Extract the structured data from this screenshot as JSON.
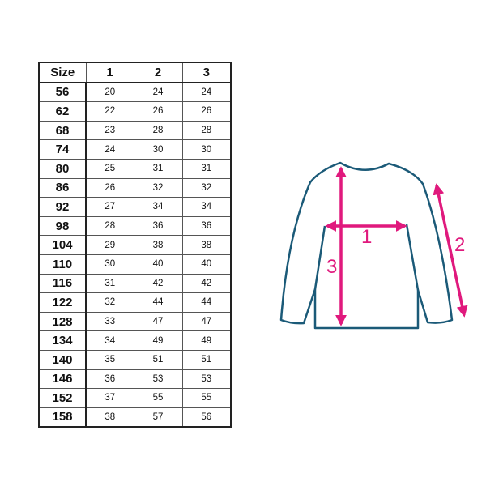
{
  "table": {
    "headers": [
      "Size",
      "1",
      "2",
      "3"
    ],
    "rows": [
      [
        "56",
        "20",
        "24",
        "24"
      ],
      [
        "62",
        "22",
        "26",
        "26"
      ],
      [
        "68",
        "23",
        "28",
        "28"
      ],
      [
        "74",
        "24",
        "30",
        "30"
      ],
      [
        "80",
        "25",
        "31",
        "31"
      ],
      [
        "86",
        "26",
        "32",
        "32"
      ],
      [
        "92",
        "27",
        "34",
        "34"
      ],
      [
        "98",
        "28",
        "36",
        "36"
      ],
      [
        "104",
        "29",
        "38",
        "38"
      ],
      [
        "110",
        "30",
        "40",
        "40"
      ],
      [
        "116",
        "31",
        "42",
        "42"
      ],
      [
        "122",
        "32",
        "44",
        "44"
      ],
      [
        "128",
        "33",
        "47",
        "47"
      ],
      [
        "134",
        "34",
        "49",
        "49"
      ],
      [
        "140",
        "35",
        "51",
        "51"
      ],
      [
        "146",
        "36",
        "53",
        "53"
      ],
      [
        "152",
        "37",
        "55",
        "55"
      ],
      [
        "158",
        "38",
        "57",
        "56"
      ]
    ]
  },
  "diagram": {
    "labels": [
      "1",
      "2",
      "3"
    ],
    "outline_color": "#1b5a78",
    "arrow_color": "#e0197d"
  }
}
